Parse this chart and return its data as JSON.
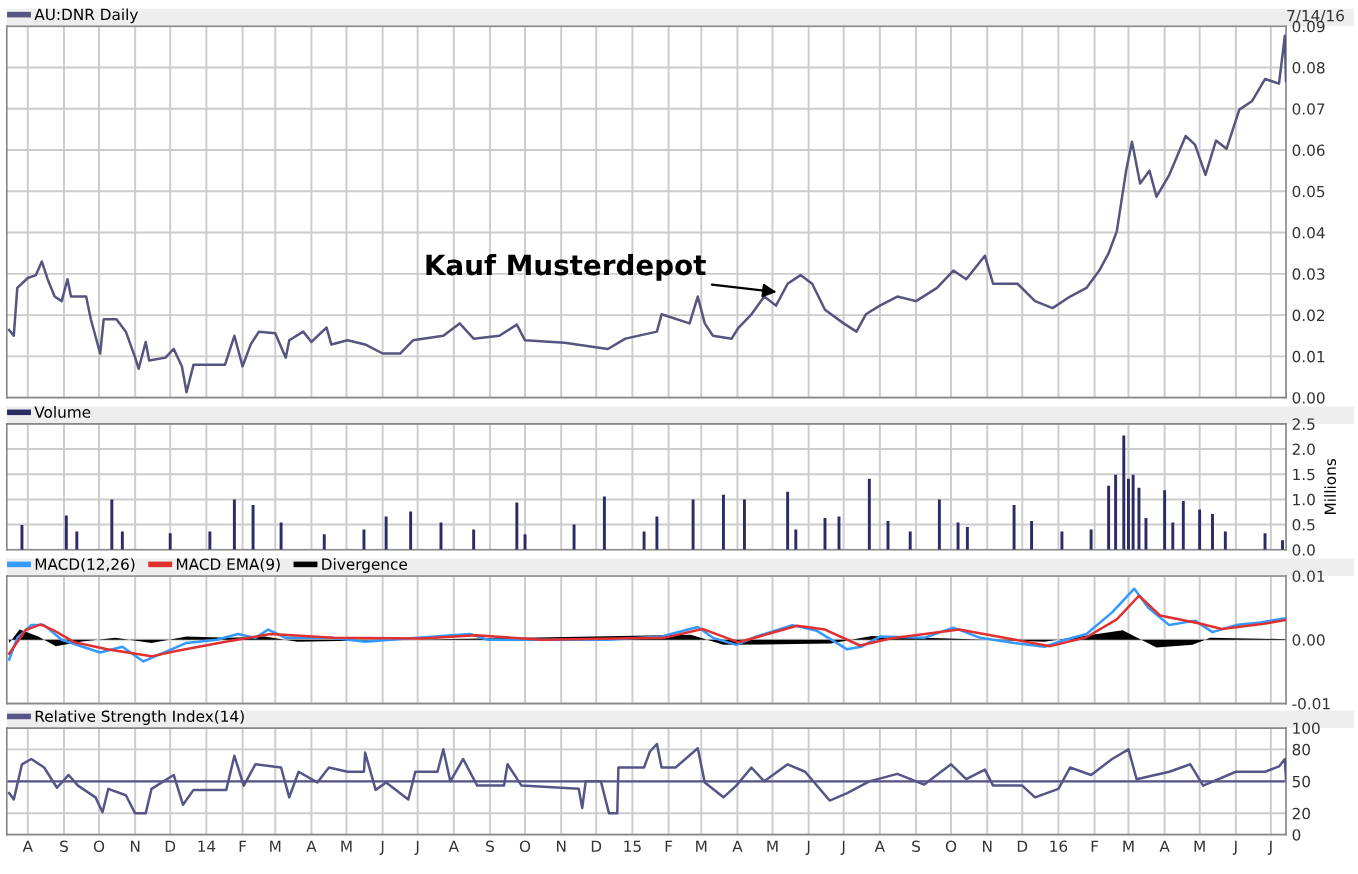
{
  "chart_data": [
    {
      "type": "line",
      "annotations": [
        "7/14/16",
        {
          "text": "Kauf Musterdepot",
          "x": "2015-05-07",
          "y": 0.0255
        }
      ],
      "legend": "top left",
      "grid": true,
      "tick_labels": "y",
      "xlim": [
        "2013-07-14",
        "2016-07-14"
      ],
      "ylim": [
        0,
        0.09
      ],
      "yticks": [
        {
          "value": 0,
          "label": "0.00"
        },
        {
          "value": 0.01,
          "label": "0.01"
        },
        {
          "value": 0.02,
          "label": "0.02"
        },
        {
          "value": 0.03,
          "label": "0.03"
        },
        {
          "value": 0.04,
          "label": "0.04"
        },
        {
          "value": 0.05,
          "label": "0.05"
        },
        {
          "value": 0.06,
          "label": "0.06"
        },
        {
          "value": 0.07,
          "label": "0.07"
        },
        {
          "value": 0.08,
          "label": "0.08"
        },
        {
          "value": 0.09,
          "label": "0.09"
        }
      ],
      "xticks": [
        {
          "value": "2013-08-01",
          "label": null
        },
        {
          "value": "2013-09-01",
          "label": null
        },
        {
          "value": "2013-10-01",
          "label": null
        },
        {
          "value": "2013-11-01",
          "label": null
        },
        {
          "value": "2013-12-01",
          "label": null
        },
        {
          "value": "2014-01-01",
          "label": null
        },
        {
          "value": "2014-02-01",
          "label": null
        },
        {
          "value": "2014-03-01",
          "label": null
        },
        {
          "value": "2014-04-01",
          "label": null
        },
        {
          "value": "2014-05-01",
          "label": null
        },
        {
          "value": "2014-06-01",
          "label": null
        },
        {
          "value": "2014-07-01",
          "label": null
        },
        {
          "value": "2014-08-01",
          "label": null
        },
        {
          "value": "2014-09-01",
          "label": null
        },
        {
          "value": "2014-10-01",
          "label": null
        },
        {
          "value": "2014-11-01",
          "label": null
        },
        {
          "value": "2014-12-01",
          "label": null
        },
        {
          "value": "2015-01-01",
          "label": null
        },
        {
          "value": "2015-02-01",
          "label": null
        },
        {
          "value": "2015-03-01",
          "label": null
        },
        {
          "value": "2015-04-01",
          "label": null
        },
        {
          "value": "2015-05-01",
          "label": null
        },
        {
          "value": "2015-06-01",
          "label": null
        },
        {
          "value": "2015-07-01",
          "label": null
        },
        {
          "value": "2015-08-01",
          "label": null
        },
        {
          "value": "2015-09-01",
          "label": null
        },
        {
          "value": "2015-10-01",
          "label": null
        },
        {
          "value": "2015-11-01",
          "label": null
        },
        {
          "value": "2015-12-01",
          "label": null
        },
        {
          "value": "2016-01-01",
          "label": null
        },
        {
          "value": "2016-02-01",
          "label": null
        },
        {
          "value": "2016-03-01",
          "label": null
        },
        {
          "value": "2016-04-01",
          "label": null
        },
        {
          "value": "2016-05-01",
          "label": null
        },
        {
          "value": "2016-06-01",
          "label": null
        },
        {
          "value": "2016-07-01",
          "label": null
        }
      ],
      "x": [
        "2013-07-16",
        "2013-07-20",
        "2013-07-23",
        "2013-08-01",
        "2013-08-08",
        "2013-08-13",
        "2013-08-18",
        "2013-08-24",
        "2013-08-30",
        "2013-09-04",
        "2013-09-07",
        "2013-09-20",
        "2013-09-24",
        "2013-10-02",
        "2013-10-05",
        "2013-10-16",
        "2013-10-24",
        "2013-11-01",
        "2013-11-04",
        "2013-11-10",
        "2013-11-13",
        "2013-11-27",
        "2013-12-04",
        "2013-12-11",
        "2013-12-15",
        "2013-12-21",
        "2014-01-03",
        "2014-01-17",
        "2014-01-25",
        "2014-02-01",
        "2014-02-08",
        "2014-02-15",
        "2014-03-01",
        "2014-03-10",
        "2014-03-13",
        "2014-03-25",
        "2014-04-01",
        "2014-04-14",
        "2014-04-18",
        "2014-05-02",
        "2014-05-17",
        "2014-06-01",
        "2014-06-16",
        "2014-06-27",
        "2014-07-23",
        "2014-08-06",
        "2014-08-18",
        "2014-09-09",
        "2014-09-24",
        "2014-10-01",
        "2014-11-04",
        "2014-12-11",
        "2014-12-26",
        "2015-01-22",
        "2015-01-26",
        "2015-02-19",
        "2015-02-26",
        "2015-03-04",
        "2015-03-11",
        "2015-03-27",
        "2015-04-02",
        "2015-04-13",
        "2015-04-24",
        "2015-05-04",
        "2015-05-14",
        "2015-05-25",
        "2015-06-04",
        "2015-06-15",
        "2015-07-01",
        "2015-07-12",
        "2015-07-20",
        "2015-08-01",
        "2015-08-16",
        "2015-09-01",
        "2015-09-19",
        "2015-10-03",
        "2015-10-14",
        "2015-10-30",
        "2015-11-06",
        "2015-11-27",
        "2015-12-12",
        "2015-12-27",
        "2016-01-11",
        "2016-01-25",
        "2016-02-05",
        "2016-02-13",
        "2016-02-20",
        "2016-02-28",
        "2016-03-04",
        "2016-03-11",
        "2016-03-19",
        "2016-03-25",
        "2016-04-05",
        "2016-04-19",
        "2016-04-27",
        "2016-05-06",
        "2016-05-15",
        "2016-05-24",
        "2016-06-04",
        "2016-06-15",
        "2016-06-26",
        "2016-07-08",
        "2016-07-13",
        "2016-07-14"
      ],
      "series": [
        {
          "name": "AU:DNR Daily",
          "color": "#55557f",
          "values": [
            0.0164,
            0.015,
            0.0266,
            0.029,
            0.0297,
            0.033,
            0.0287,
            0.0245,
            0.0234,
            0.0287,
            0.0245,
            0.0245,
            0.019,
            0.0107,
            0.019,
            0.019,
            0.016,
            0.0097,
            0.007,
            0.0135,
            0.009,
            0.0097,
            0.0118,
            0.0076,
            0.0013,
            0.008,
            0.008,
            0.008,
            0.015,
            0.0076,
            0.0129,
            0.016,
            0.0156,
            0.0097,
            0.0139,
            0.016,
            0.0135,
            0.017,
            0.0129,
            0.0139,
            0.0129,
            0.0107,
            0.0107,
            0.0139,
            0.015,
            0.018,
            0.0143,
            0.015,
            0.0177,
            0.0139,
            0.0133,
            0.0118,
            0.0143,
            0.016,
            0.0202,
            0.018,
            0.0245,
            0.018,
            0.015,
            0.0143,
            0.017,
            0.0202,
            0.0245,
            0.0223,
            0.0276,
            0.0297,
            0.0276,
            0.0213,
            0.018,
            0.016,
            0.0202,
            0.0223,
            0.0245,
            0.0234,
            0.0266,
            0.0308,
            0.0287,
            0.0344,
            0.0276,
            0.0276,
            0.0234,
            0.0217,
            0.0245,
            0.0266,
            0.0308,
            0.035,
            0.0403,
            0.055,
            0.062,
            0.0519,
            0.055,
            0.0487,
            0.054,
            0.0634,
            0.0613,
            0.054,
            0.0623,
            0.0603,
            0.0698,
            0.0719,
            0.0772,
            0.0761,
            0.0877,
            0.0767
          ]
        }
      ]
    },
    {
      "type": "bar",
      "ylabel": "Millions",
      "legend": "top left",
      "grid": true,
      "tick_labels": "y",
      "xlim": [
        "2013-07-14",
        "2016-07-14"
      ],
      "ylim": [
        0,
        2.5
      ],
      "yticks": [
        {
          "value": 0,
          "label": "0.0"
        },
        {
          "value": 0.5,
          "label": "0.5"
        },
        {
          "value": 1,
          "label": "1.0"
        },
        {
          "value": 1.5,
          "label": "1.5"
        },
        {
          "value": 2,
          "label": "2.0"
        },
        {
          "value": 2.5,
          "label": "2.5"
        }
      ],
      "xticks": [
        {
          "value": "2013-08-01",
          "label": null
        },
        {
          "value": "2013-09-01",
          "label": null
        },
        {
          "value": "2013-10-01",
          "label": null
        },
        {
          "value": "2013-11-01",
          "label": null
        },
        {
          "value": "2013-12-01",
          "label": null
        },
        {
          "value": "2014-01-01",
          "label": null
        },
        {
          "value": "2014-02-01",
          "label": null
        },
        {
          "value": "2014-03-01",
          "label": null
        },
        {
          "value": "2014-04-01",
          "label": null
        },
        {
          "value": "2014-05-01",
          "label": null
        },
        {
          "value": "2014-06-01",
          "label": null
        },
        {
          "value": "2014-07-01",
          "label": null
        },
        {
          "value": "2014-08-01",
          "label": null
        },
        {
          "value": "2014-09-01",
          "label": null
        },
        {
          "value": "2014-10-01",
          "label": null
        },
        {
          "value": "2014-11-01",
          "label": null
        },
        {
          "value": "2014-12-01",
          "label": null
        },
        {
          "value": "2015-01-01",
          "label": null
        },
        {
          "value": "2015-02-01",
          "label": null
        },
        {
          "value": "2015-03-01",
          "label": null
        },
        {
          "value": "2015-04-01",
          "label": null
        },
        {
          "value": "2015-05-01",
          "label": null
        },
        {
          "value": "2015-06-01",
          "label": null
        },
        {
          "value": "2015-07-01",
          "label": null
        },
        {
          "value": "2015-08-01",
          "label": null
        },
        {
          "value": "2015-09-01",
          "label": null
        },
        {
          "value": "2015-10-01",
          "label": null
        },
        {
          "value": "2015-11-01",
          "label": null
        },
        {
          "value": "2015-12-01",
          "label": null
        },
        {
          "value": "2016-01-01",
          "label": null
        },
        {
          "value": "2016-02-01",
          "label": null
        },
        {
          "value": "2016-03-01",
          "label": null
        },
        {
          "value": "2016-04-01",
          "label": null
        },
        {
          "value": "2016-05-01",
          "label": null
        },
        {
          "value": "2016-06-01",
          "label": null
        },
        {
          "value": "2016-07-01",
          "label": null
        }
      ],
      "x": [
        "2013-07-27",
        "2013-09-03",
        "2013-09-12",
        "2013-10-12",
        "2013-10-21",
        "2013-12-01",
        "2014-01-04",
        "2014-01-25",
        "2014-02-10",
        "2014-03-06",
        "2014-04-12",
        "2014-05-16",
        "2014-06-04",
        "2014-06-25",
        "2014-07-21",
        "2014-08-18",
        "2014-09-24",
        "2014-10-01",
        "2014-11-12",
        "2014-12-08",
        "2015-01-11",
        "2015-01-22",
        "2015-02-22",
        "2015-03-20",
        "2015-04-07",
        "2015-05-14",
        "2015-05-21",
        "2015-06-15",
        "2015-06-27",
        "2015-07-23",
        "2015-08-08",
        "2015-08-27",
        "2015-09-21",
        "2015-10-07",
        "2015-10-15",
        "2015-11-24",
        "2015-12-09",
        "2016-01-04",
        "2016-01-29",
        "2016-02-13",
        "2016-02-19",
        "2016-02-26",
        "2016-03-01",
        "2016-03-05",
        "2016-03-10",
        "2016-03-16",
        "2016-04-01",
        "2016-04-08",
        "2016-04-17",
        "2016-05-01",
        "2016-05-12",
        "2016-05-23",
        "2016-06-26",
        "2016-07-11"
      ],
      "series": [
        {
          "name": "Volume",
          "color": "#2b2b66",
          "values": [
            0.49,
            0.68,
            0.36,
            1.0,
            0.36,
            0.33,
            0.36,
            1.0,
            0.89,
            0.54,
            0.31,
            0.4,
            0.66,
            0.76,
            0.54,
            0.4,
            0.94,
            0.31,
            0.5,
            1.06,
            0.36,
            0.66,
            1.0,
            1.09,
            1.0,
            1.15,
            0.4,
            0.63,
            0.66,
            1.41,
            0.57,
            0.36,
            1.0,
            0.54,
            0.45,
            0.89,
            0.57,
            0.36,
            0.4,
            1.27,
            1.49,
            2.27,
            1.41,
            1.49,
            1.23,
            0.63,
            1.18,
            0.54,
            0.97,
            0.8,
            0.71,
            0.36,
            0.33,
            0.19
          ]
        }
      ]
    },
    {
      "type": "line",
      "legend": "top left",
      "grid": true,
      "tick_labels": "y",
      "xlim": [
        "2013-07-14",
        "2016-07-14"
      ],
      "ylim": [
        -0.01,
        0.01
      ],
      "yticks": [
        {
          "value": -0.01,
          "label": "-0.01"
        },
        {
          "value": 0,
          "label": "0.00"
        },
        {
          "value": 0.01,
          "label": "0.01"
        }
      ],
      "xticks": [
        {
          "value": "2013-08-01",
          "label": null
        },
        {
          "value": "2013-09-01",
          "label": null
        },
        {
          "value": "2013-10-01",
          "label": null
        },
        {
          "value": "2013-11-01",
          "label": null
        },
        {
          "value": "2013-12-01",
          "label": null
        },
        {
          "value": "2014-01-01",
          "label": null
        },
        {
          "value": "2014-02-01",
          "label": null
        },
        {
          "value": "2014-03-01",
          "label": null
        },
        {
          "value": "2014-04-01",
          "label": null
        },
        {
          "value": "2014-05-01",
          "label": null
        },
        {
          "value": "2014-06-01",
          "label": null
        },
        {
          "value": "2014-07-01",
          "label": null
        },
        {
          "value": "2014-08-01",
          "label": null
        },
        {
          "value": "2014-09-01",
          "label": null
        },
        {
          "value": "2014-10-01",
          "label": null
        },
        {
          "value": "2014-11-01",
          "label": null
        },
        {
          "value": "2014-12-01",
          "label": null
        },
        {
          "value": "2015-01-01",
          "label": null
        },
        {
          "value": "2015-02-01",
          "label": null
        },
        {
          "value": "2015-03-01",
          "label": null
        },
        {
          "value": "2015-04-01",
          "label": null
        },
        {
          "value": "2015-05-01",
          "label": null
        },
        {
          "value": "2015-06-01",
          "label": null
        },
        {
          "value": "2015-07-01",
          "label": null
        },
        {
          "value": "2015-08-01",
          "label": null
        },
        {
          "value": "2015-09-01",
          "label": null
        },
        {
          "value": "2015-10-01",
          "label": null
        },
        {
          "value": "2015-11-01",
          "label": null
        },
        {
          "value": "2015-12-01",
          "label": null
        },
        {
          "value": "2016-01-01",
          "label": null
        },
        {
          "value": "2016-02-01",
          "label": null
        },
        {
          "value": "2016-03-01",
          "label": null
        },
        {
          "value": "2016-04-01",
          "label": null
        },
        {
          "value": "2016-05-01",
          "label": null
        },
        {
          "value": "2016-06-01",
          "label": null
        },
        {
          "value": "2016-07-01",
          "label": null
        }
      ],
      "series": [
        {
          "name": "MACD(12,26)",
          "color": "#3399ff",
          "x": [
            "2013-07-16",
            "2013-07-23",
            "2013-08-04",
            "2013-08-15",
            "2013-08-30",
            "2013-09-17",
            "2013-10-02",
            "2013-10-21",
            "2013-11-08",
            "2013-11-23",
            "2013-12-15",
            "2014-01-10",
            "2014-01-28",
            "2014-02-12",
            "2014-02-23",
            "2014-03-10",
            "2014-04-18",
            "2014-05-17",
            "2014-07-01",
            "2014-08-15",
            "2014-08-30",
            "2014-10-13",
            "2014-12-11",
            "2015-01-26",
            "2015-02-26",
            "2015-03-11",
            "2015-03-31",
            "2015-04-17",
            "2015-05-18",
            "2015-06-08",
            "2015-07-04",
            "2015-07-16",
            "2015-08-01",
            "2015-09-08",
            "2015-10-03",
            "2015-10-26",
            "2015-11-20",
            "2015-12-20",
            "2016-01-07",
            "2016-01-25",
            "2016-02-16",
            "2016-03-06",
            "2016-03-18",
            "2016-04-05",
            "2016-04-27",
            "2016-05-12",
            "2016-06-01",
            "2016-06-22",
            "2016-07-14"
          ],
          "values": [
            -0.0031,
            0.0003,
            0.0023,
            0.0023,
            0,
            -0.0011,
            -0.002,
            -0.0011,
            -0.0034,
            -0.0022,
            -0.0005,
            0,
            0.0009,
            0.0003,
            0.0016,
            0.0003,
            0.0003,
            -0.0003,
            0.0003,
            0.0009,
            0,
            0,
            0,
            0.0005,
            0.002,
            0.0003,
            -0.0008,
            0.0005,
            0.0023,
            0.0014,
            -0.0015,
            -0.0011,
            0.0005,
            0.0003,
            0.0019,
            0.0003,
            -0.0004,
            -0.0011,
            0,
            0.0009,
            0.0043,
            0.008,
            0.005,
            0.0023,
            0.003,
            0.0012,
            0.0023,
            0.0027,
            0.0034
          ]
        },
        {
          "name": "MACD EMA(9)",
          "color": "#e03030",
          "x": [
            "2013-07-16",
            "2013-07-30",
            "2013-08-12",
            "2013-08-25",
            "2013-09-10",
            "2013-10-08",
            "2013-11-15",
            "2013-12-05",
            "2014-01-15",
            "2014-02-25",
            "2014-04-20",
            "2014-07-05",
            "2014-08-20",
            "2014-10-15",
            "2015-01-28",
            "2015-03-02",
            "2015-04-02",
            "2015-05-22",
            "2015-06-15",
            "2015-07-15",
            "2015-08-10",
            "2015-10-08",
            "2015-11-25",
            "2015-12-25",
            "2016-01-25",
            "2016-02-20",
            "2016-03-10",
            "2016-03-28",
            "2016-04-30",
            "2016-05-20",
            "2016-06-25",
            "2016-07-14"
          ],
          "values": [
            -0.0022,
            0.0015,
            0.0024,
            0.0013,
            -0.0004,
            -0.0015,
            -0.0026,
            -0.0018,
            -0.0004,
            0.0009,
            0.0003,
            0.0002,
            0.0007,
            0,
            0.0003,
            0.0017,
            -0.0004,
            0.0022,
            0.0016,
            -0.0009,
            0.0002,
            0.0016,
            0,
            -0.001,
            0.0004,
            0.0032,
            0.0069,
            0.0038,
            0.0026,
            0.0017,
            0.0025,
            0.0031
          ]
        },
        {
          "name": "Divergence",
          "type": "area",
          "color": "#000000",
          "x": [
            "2013-07-16",
            "2013-07-25",
            "2013-08-10",
            "2013-08-25",
            "2013-09-15",
            "2013-10-15",
            "2013-11-15",
            "2013-12-15",
            "2014-01-20",
            "2014-02-20",
            "2014-03-20",
            "2015-02-20",
            "2015-03-20",
            "2015-06-20",
            "2015-07-25",
            "2015-12-20",
            "2016-02-25",
            "2016-03-25",
            "2016-04-25",
            "2016-05-10",
            "2016-07-14"
          ],
          "values": [
            -0.0005,
            0.0016,
            0.0005,
            -0.001,
            -0.0003,
            0.0003,
            -0.0005,
            0.0005,
            0.0003,
            0.0005,
            -0.0003,
            0.0008,
            -0.0008,
            -0.0006,
            0.0006,
            -0.0003,
            0.0015,
            -0.0012,
            -0.0008,
            0.0003,
            0.0001
          ]
        }
      ]
    },
    {
      "type": "line",
      "legend": "top left",
      "grid": true,
      "ref_lines": [
        {
          "axis": "y",
          "value": 50,
          "color": "#555588"
        }
      ],
      "xlim": [
        "2013-07-14",
        "2016-07-14"
      ],
      "ylim": [
        0,
        100
      ],
      "yticks": [
        0,
        20,
        50,
        80,
        100
      ],
      "xticks": [
        {
          "value": "2013-08-01",
          "label": "A"
        },
        {
          "value": "2013-09-01",
          "label": "S"
        },
        {
          "value": "2013-10-01",
          "label": "O"
        },
        {
          "value": "2013-11-01",
          "label": "N"
        },
        {
          "value": "2013-12-01",
          "label": "D"
        },
        {
          "value": "2014-01-01",
          "label": "14"
        },
        {
          "value": "2014-02-01",
          "label": "F"
        },
        {
          "value": "2014-03-01",
          "label": "M"
        },
        {
          "value": "2014-04-01",
          "label": "A"
        },
        {
          "value": "2014-05-01",
          "label": "M"
        },
        {
          "value": "2014-06-01",
          "label": "J"
        },
        {
          "value": "2014-07-01",
          "label": "J"
        },
        {
          "value": "2014-08-01",
          "label": "A"
        },
        {
          "value": "2014-09-01",
          "label": "S"
        },
        {
          "value": "2014-10-01",
          "label": "O"
        },
        {
          "value": "2014-11-01",
          "label": "N"
        },
        {
          "value": "2014-12-01",
          "label": "D"
        },
        {
          "value": "2015-01-01",
          "label": "15"
        },
        {
          "value": "2015-02-01",
          "label": "F"
        },
        {
          "value": "2015-03-01",
          "label": "M"
        },
        {
          "value": "2015-04-01",
          "label": "A"
        },
        {
          "value": "2015-05-01",
          "label": "M"
        },
        {
          "value": "2015-06-01",
          "label": "J"
        },
        {
          "value": "2015-07-01",
          "label": "J"
        },
        {
          "value": "2015-08-01",
          "label": "A"
        },
        {
          "value": "2015-09-01",
          "label": "S"
        },
        {
          "value": "2015-10-01",
          "label": "O"
        },
        {
          "value": "2015-11-01",
          "label": "N"
        },
        {
          "value": "2015-12-01",
          "label": "D"
        },
        {
          "value": "2016-01-01",
          "label": "16"
        },
        {
          "value": "2016-02-01",
          "label": "F"
        },
        {
          "value": "2016-03-01",
          "label": "M"
        },
        {
          "value": "2016-04-01",
          "label": "A"
        },
        {
          "value": "2016-05-01",
          "label": "M"
        },
        {
          "value": "2016-06-01",
          "label": "J"
        },
        {
          "value": "2016-07-01",
          "label": "J"
        }
      ],
      "x": [
        "2013-07-16",
        "2013-07-20",
        "2013-07-27",
        "2013-08-04",
        "2013-08-15",
        "2013-08-26",
        "2013-09-05",
        "2013-09-13",
        "2013-09-28",
        "2013-10-04",
        "2013-10-09",
        "2013-10-24",
        "2013-11-01",
        "2013-11-10",
        "2013-11-15",
        "2013-12-04",
        "2013-12-12",
        "2013-12-21",
        "2014-01-03",
        "2014-01-18",
        "2014-01-25",
        "2014-02-02",
        "2014-02-12",
        "2014-03-06",
        "2014-03-13",
        "2014-03-21",
        "2014-04-06",
        "2014-04-16",
        "2014-05-02",
        "2014-05-16",
        "2014-05-17",
        "2014-05-26",
        "2014-06-04",
        "2014-06-23",
        "2014-06-29",
        "2014-07-18",
        "2014-07-23",
        "2014-07-29",
        "2014-08-09",
        "2014-08-21",
        "2014-09-13",
        "2014-09-16",
        "2014-09-28",
        "2014-11-16",
        "2014-11-19",
        "2014-11-22",
        "2014-12-05",
        "2014-12-12",
        "2014-12-19",
        "2014-12-20",
        "2015-01-11",
        "2015-01-16",
        "2015-01-22",
        "2015-01-26",
        "2015-02-07",
        "2015-02-26",
        "2015-03-04",
        "2015-03-20",
        "2015-03-31",
        "2015-04-13",
        "2015-04-24",
        "2015-05-14",
        "2015-05-29",
        "2015-06-19",
        "2015-07-04",
        "2015-07-23",
        "2015-08-16",
        "2015-09-08",
        "2015-10-01",
        "2015-10-14",
        "2015-10-30",
        "2015-11-06",
        "2015-12-01",
        "2015-12-12",
        "2016-01-01",
        "2016-01-11",
        "2016-01-29",
        "2016-02-16",
        "2016-03-01",
        "2016-03-08",
        "2016-04-05",
        "2016-04-23",
        "2016-05-04",
        "2016-06-01",
        "2016-06-26",
        "2016-07-08",
        "2016-07-13",
        "2016-07-14"
      ],
      "series": [
        {
          "name": "Relative Strength Index(14)",
          "color": "#555588",
          "values": [
            39,
            33,
            66,
            71,
            63,
            44,
            56,
            46,
            35,
            21,
            43,
            37,
            20,
            20,
            43,
            56,
            28,
            42,
            42,
            42,
            74,
            46,
            66,
            63,
            35,
            59,
            49,
            63,
            59,
            59,
            77,
            42,
            49,
            33,
            59,
            59,
            80,
            50,
            71,
            46,
            46,
            66,
            46,
            43,
            25,
            50,
            50,
            20,
            20,
            63,
            63,
            78,
            85,
            63,
            63,
            81,
            49,
            35,
            46,
            63,
            50,
            66,
            59,
            32,
            39,
            50,
            57,
            47,
            66,
            52,
            61,
            46,
            46,
            35,
            43,
            63,
            56,
            71,
            80,
            52,
            59,
            66,
            46,
            59,
            59,
            64,
            71,
            52
          ]
        }
      ]
    }
  ]
}
